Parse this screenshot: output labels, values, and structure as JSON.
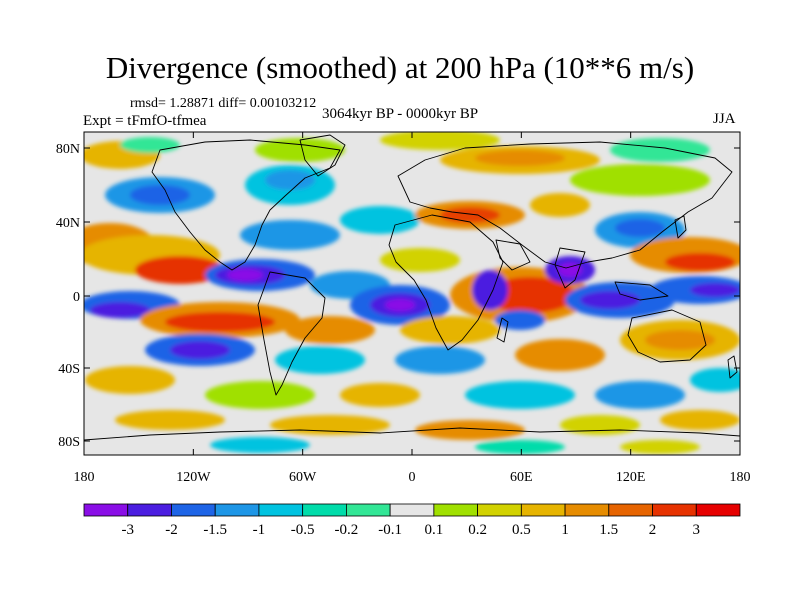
{
  "figure": {
    "title": "Divergence (smoothed) at 200 hPa (10**6 m/s)",
    "stats": "rmsd= 1.28871  diff= 0.00103212",
    "experiment": "Expt = tFmfO-tfmea",
    "period": "3064kyr BP - 0000kyr BP",
    "season": "JJA"
  },
  "axes": {
    "lat_labels": [
      "80N",
      "40N",
      "0",
      "40S",
      "80S"
    ],
    "lon_labels": [
      "180",
      "120W",
      "60W",
      "0",
      "60E",
      "120E",
      "180"
    ]
  },
  "colorbar": {
    "colors": [
      "#8a0ee6",
      "#4b1ee0",
      "#1e64e6",
      "#1e96e6",
      "#00c3e0",
      "#00dcaa",
      "#32e696",
      "#e6e6e6",
      "#a0e000",
      "#d2d200",
      "#e6b400",
      "#e68c00",
      "#e66400",
      "#e63200",
      "#e60000"
    ],
    "labels": [
      "-3",
      "-2",
      "-1.5",
      "-1",
      "-0.5",
      "-0.2",
      "-0.1",
      "0.1",
      "0.2",
      "0.5",
      "1",
      "1.5",
      "2",
      "3"
    ]
  }
}
